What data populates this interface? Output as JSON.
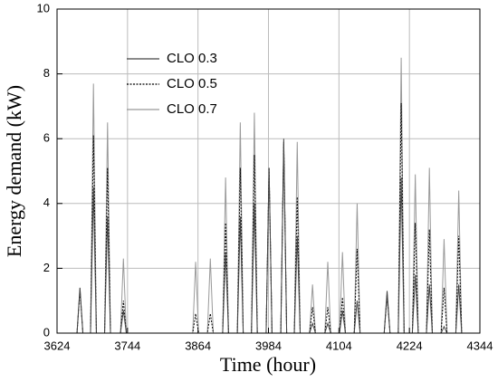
{
  "chart_data": {
    "type": "line",
    "xlabel": "Time (hour)",
    "ylabel": "Energy demand (kW)",
    "x": [
      3658,
      3663,
      3668,
      3681,
      3686,
      3691,
      3705,
      3710,
      3715,
      3732,
      3737,
      3742,
      3855,
      3860,
      3865,
      3880,
      3885,
      3890,
      3906,
      3911,
      3916,
      3931,
      3936,
      3941,
      3955,
      3960,
      3965,
      3980,
      3985,
      3990,
      4005,
      4010,
      4015,
      4028,
      4033,
      4038,
      4054,
      4059,
      4064,
      4080,
      4085,
      4090,
      4105,
      4110,
      4115,
      4130,
      4135,
      4140,
      4181,
      4186,
      4191,
      4205,
      4210,
      4215,
      4229,
      4234,
      4239,
      4253,
      4258,
      4263,
      4278,
      4283,
      4288,
      4303,
      4308,
      4313
    ],
    "series": [
      {
        "name": "CLO 0.3",
        "color": "#444444",
        "dash": "none",
        "values": [
          0,
          1.4,
          0,
          0,
          4.5,
          0,
          0,
          3.6,
          0,
          0,
          0.7,
          0,
          0,
          0,
          0,
          0,
          0,
          0,
          0,
          2.5,
          0,
          0,
          3.6,
          0,
          0,
          4.0,
          0,
          0,
          5.1,
          0,
          0,
          6.0,
          0,
          0,
          3.0,
          0,
          0,
          0.3,
          0,
          0,
          0.3,
          0,
          0,
          0.7,
          0,
          0,
          1.0,
          0,
          0,
          1.3,
          0,
          0,
          4.8,
          0,
          0,
          1.8,
          0,
          0,
          1.5,
          0,
          0,
          0.2,
          0,
          0,
          1.5,
          0
        ]
      },
      {
        "name": "CLO 0.5",
        "color": "#000000",
        "dash": "2,1.5",
        "values": [
          0,
          1.3,
          0,
          0,
          6.1,
          0,
          0,
          5.1,
          0,
          0,
          1.0,
          0,
          0,
          0.6,
          0,
          0,
          0.6,
          0,
          0,
          3.4,
          0,
          0,
          5.1,
          0,
          0,
          5.5,
          0,
          0,
          5.1,
          0,
          0,
          5.9,
          0,
          0,
          4.2,
          0,
          0,
          0.8,
          0,
          0,
          0.8,
          0,
          0,
          1.1,
          0,
          0,
          2.6,
          0,
          0,
          1.2,
          0,
          0,
          7.1,
          0,
          0,
          3.4,
          0,
          0,
          3.2,
          0,
          0,
          1.4,
          0,
          0,
          3.0,
          0
        ]
      },
      {
        "name": "CLO 0.7",
        "color": "#999999",
        "dash": "none",
        "values": [
          0,
          1.4,
          0,
          0,
          7.7,
          0,
          0,
          6.5,
          0,
          0,
          2.3,
          0,
          0,
          2.2,
          0,
          0,
          2.3,
          0,
          0,
          4.8,
          0,
          0,
          6.5,
          0,
          0,
          6.8,
          0,
          0,
          5.1,
          0,
          0,
          5.8,
          0,
          0,
          5.9,
          0,
          0,
          1.5,
          0,
          0,
          2.2,
          0,
          0,
          2.5,
          0,
          0,
          4.0,
          0,
          0,
          1.1,
          0,
          0,
          8.5,
          0,
          0,
          4.9,
          0,
          0,
          5.1,
          0,
          0,
          2.9,
          0,
          0,
          4.4,
          0
        ]
      }
    ],
    "xlim": [
      3624,
      4344
    ],
    "xticks": [
      3624,
      3744,
      3864,
      3984,
      4104,
      4224,
      4344
    ],
    "ylim": [
      0,
      10
    ],
    "yticks": [
      0,
      2,
      4,
      6,
      8,
      10
    ],
    "grid": true
  }
}
